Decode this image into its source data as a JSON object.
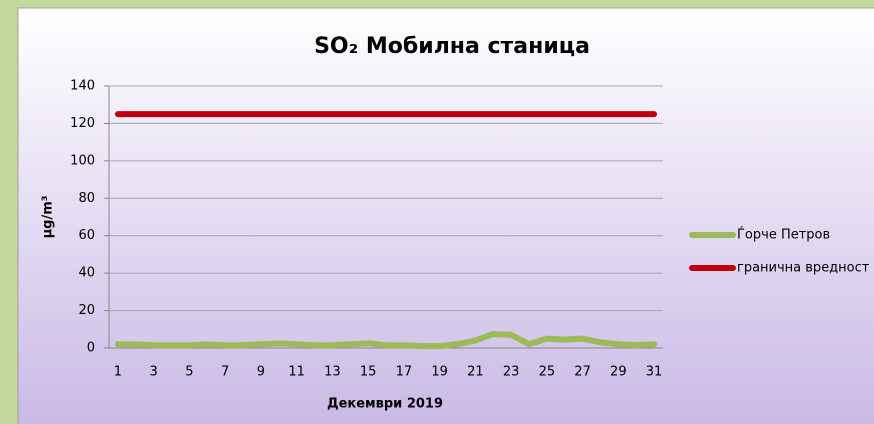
{
  "chart_data": {
    "type": "line",
    "title": "SO₂ Мобилна станица",
    "x_label": "Декември 2019",
    "y_label": "µg/m³",
    "categories": [
      1,
      null,
      3,
      null,
      5,
      null,
      7,
      null,
      9,
      null,
      11,
      null,
      13,
      null,
      15,
      null,
      17,
      null,
      19,
      null,
      21,
      null,
      23,
      null,
      25,
      null,
      27,
      null,
      29,
      null,
      31
    ],
    "series": [
      {
        "name": "Ѓорче Петров",
        "color": "#9bbb59",
        "values": [
          2,
          2,
          1.5,
          1.5,
          1.5,
          2,
          1.5,
          1.5,
          2,
          2.5,
          2,
          1.5,
          1.5,
          2,
          2.5,
          1.5,
          1.5,
          1,
          1,
          2,
          4,
          7.5,
          7,
          2,
          5,
          4.5,
          5,
          3,
          2,
          1.5,
          2
        ]
      },
      {
        "name": "гранична вредност",
        "color": "#c0000b",
        "values": [
          125,
          125,
          125,
          125,
          125,
          125,
          125,
          125,
          125,
          125,
          125,
          125,
          125,
          125,
          125,
          125,
          125,
          125,
          125,
          125,
          125,
          125,
          125,
          125,
          125,
          125,
          125,
          125,
          125,
          125,
          125
        ]
      }
    ],
    "ylim": [
      0,
      140
    ],
    "yticks": [
      0,
      20,
      40,
      60,
      80,
      100,
      120,
      140
    ],
    "grid": true,
    "legend": "right"
  }
}
